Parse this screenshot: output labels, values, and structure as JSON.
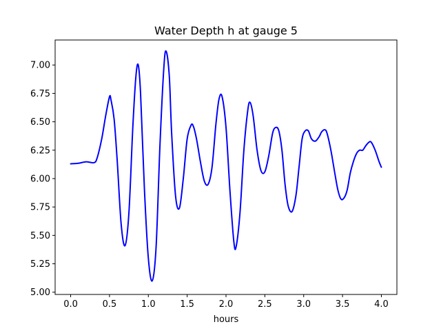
{
  "chart_data": {
    "type": "line",
    "title": "Water Depth h at gauge 5",
    "xlabel": "hours",
    "ylabel": "",
    "xlim": [
      -0.2,
      4.2
    ],
    "ylim": [
      4.98,
      7.22
    ],
    "xticks": [
      0.0,
      0.5,
      1.0,
      1.5,
      2.0,
      2.5,
      3.0,
      3.5,
      4.0
    ],
    "xtick_labels": [
      "0.0",
      "0.5",
      "1.0",
      "1.5",
      "2.0",
      "2.5",
      "3.0",
      "3.5",
      "4.0"
    ],
    "yticks": [
      5.0,
      5.25,
      5.5,
      5.75,
      6.0,
      6.25,
      6.5,
      6.75,
      7.0
    ],
    "ytick_labels": [
      "5.00",
      "5.25",
      "5.50",
      "5.75",
      "6.00",
      "6.25",
      "6.50",
      "6.75",
      "7.00"
    ],
    "grid": false,
    "series": [
      {
        "color": "#0000ff",
        "x": [
          0.0,
          0.1,
          0.2,
          0.3,
          0.34,
          0.4,
          0.45,
          0.5,
          0.52,
          0.56,
          0.6,
          0.65,
          0.7,
          0.75,
          0.8,
          0.84,
          0.87,
          0.9,
          0.95,
          1.0,
          1.05,
          1.1,
          1.15,
          1.2,
          1.23,
          1.27,
          1.3,
          1.35,
          1.4,
          1.45,
          1.5,
          1.55,
          1.58,
          1.62,
          1.67,
          1.72,
          1.77,
          1.82,
          1.87,
          1.91,
          1.95,
          2.0,
          2.05,
          2.1,
          2.13,
          2.18,
          2.23,
          2.28,
          2.31,
          2.35,
          2.4,
          2.45,
          2.5,
          2.55,
          2.6,
          2.64,
          2.68,
          2.72,
          2.76,
          2.8,
          2.85,
          2.9,
          2.94,
          2.98,
          3.02,
          3.06,
          3.1,
          3.15,
          3.2,
          3.23,
          3.27,
          3.3,
          3.35,
          3.4,
          3.44,
          3.48,
          3.52,
          3.56,
          3.6,
          3.64,
          3.68,
          3.72,
          3.76,
          3.8,
          3.84,
          3.87,
          3.92,
          3.97,
          4.0
        ],
        "y": [
          6.13,
          6.135,
          6.148,
          6.14,
          6.18,
          6.35,
          6.55,
          6.72,
          6.69,
          6.52,
          6.15,
          5.6,
          5.41,
          5.7,
          6.45,
          6.9,
          7.0,
          6.75,
          5.9,
          5.3,
          5.1,
          5.4,
          6.3,
          6.98,
          7.12,
          6.9,
          6.4,
          5.85,
          5.74,
          6.0,
          6.35,
          6.47,
          6.46,
          6.35,
          6.15,
          5.98,
          5.95,
          6.1,
          6.48,
          6.7,
          6.72,
          6.45,
          5.9,
          5.45,
          5.4,
          5.7,
          6.25,
          6.6,
          6.67,
          6.55,
          6.25,
          6.07,
          6.06,
          6.2,
          6.4,
          6.45,
          6.42,
          6.25,
          5.95,
          5.76,
          5.71,
          5.85,
          6.1,
          6.35,
          6.42,
          6.42,
          6.35,
          6.33,
          6.37,
          6.41,
          6.43,
          6.4,
          6.25,
          6.05,
          5.9,
          5.82,
          5.83,
          5.9,
          6.05,
          6.15,
          6.22,
          6.25,
          6.25,
          6.29,
          6.32,
          6.32,
          6.25,
          6.15,
          6.1
        ]
      }
    ]
  }
}
